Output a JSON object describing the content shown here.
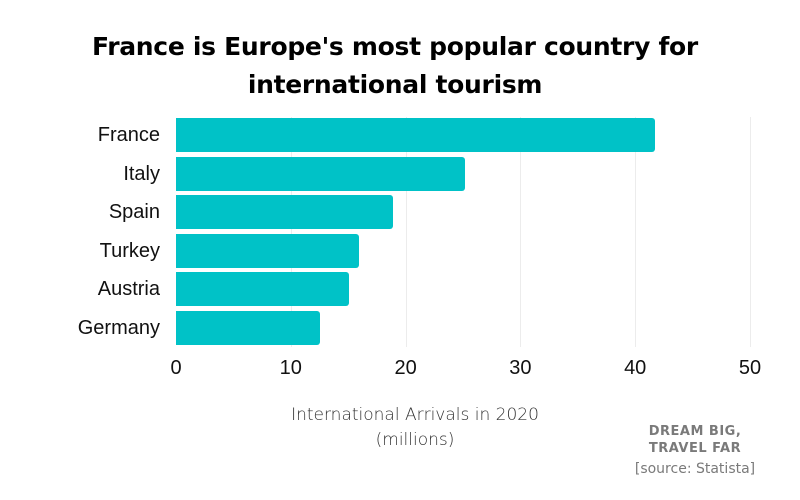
{
  "chart_data": {
    "type": "bar",
    "orientation": "horizontal",
    "title": "France is Europe's most popular country for international tourism",
    "categories": [
      "France",
      "Italy",
      "Spain",
      "Turkey",
      "Austria",
      "Germany"
    ],
    "values": [
      41.7,
      25.2,
      18.9,
      15.9,
      15.1,
      12.5
    ],
    "xlabel": "International Arrivals in 2020 (millions)",
    "ylabel": "",
    "xlim": [
      0,
      50
    ],
    "xticks": [
      0,
      10,
      20,
      30,
      40,
      50
    ],
    "grid": true,
    "bar_color": "#00c2c7",
    "legend": null
  },
  "title_line1": "France is Europe's most popular country for",
  "title_line2": "international tourism",
  "xlabel_line1": "International Arrivals in 2020",
  "xlabel_line2": "(millions)",
  "brand_line1": "DREAM BIG,",
  "brand_line2": "TRAVEL FAR",
  "source": "[source: Statista]"
}
